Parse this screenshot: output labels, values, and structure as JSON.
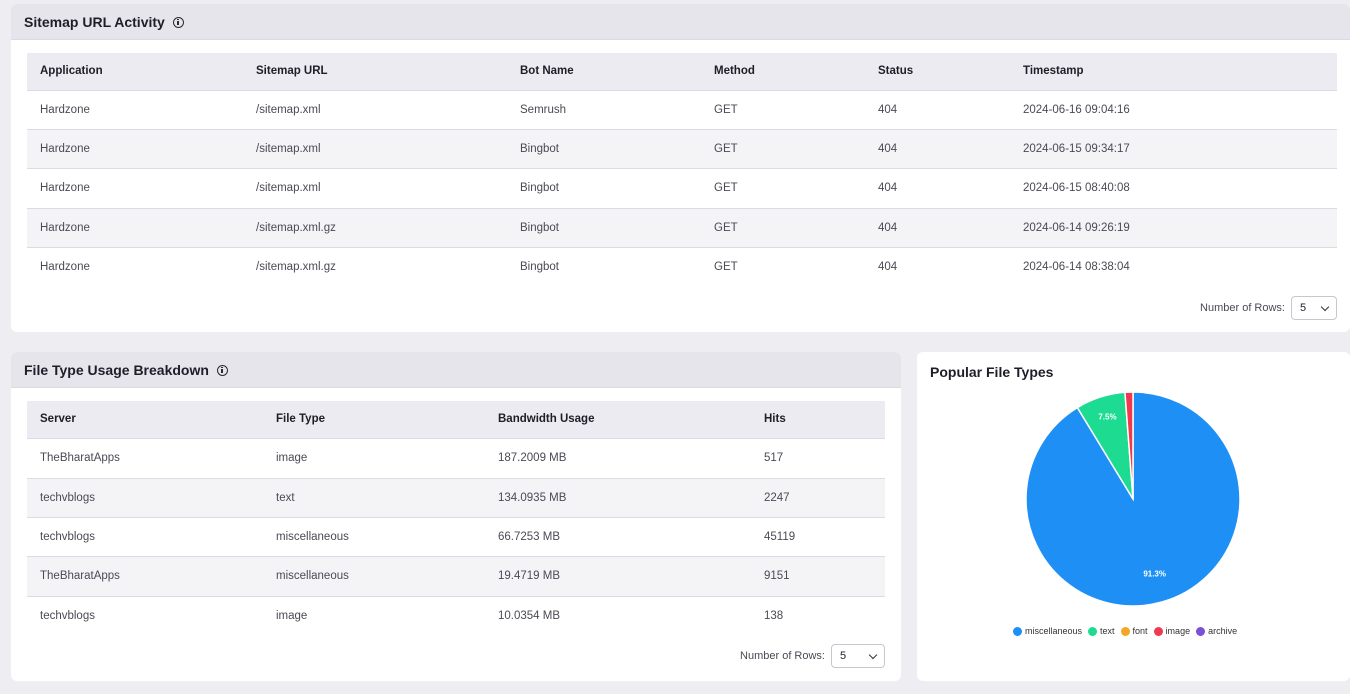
{
  "sitemap": {
    "title": "Sitemap URL Activity",
    "columns": [
      "Application",
      "Sitemap URL",
      "Bot Name",
      "Method",
      "Status",
      "Timestamp"
    ],
    "rows": [
      [
        "Hardzone",
        "/sitemap.xml",
        "Semrush",
        "GET",
        "404",
        "2024-06-16 09:04:16"
      ],
      [
        "Hardzone",
        "/sitemap.xml",
        "Bingbot",
        "GET",
        "404",
        "2024-06-15 09:34:17"
      ],
      [
        "Hardzone",
        "/sitemap.xml",
        "Bingbot",
        "GET",
        "404",
        "2024-06-15 08:40:08"
      ],
      [
        "Hardzone",
        "/sitemap.xml.gz",
        "Bingbot",
        "GET",
        "404",
        "2024-06-14 09:26:19"
      ],
      [
        "Hardzone",
        "/sitemap.xml.gz",
        "Bingbot",
        "GET",
        "404",
        "2024-06-14 08:38:04"
      ]
    ],
    "rows_label": "Number of Rows:",
    "rows_value": "5"
  },
  "filetype": {
    "title": "File Type Usage Breakdown",
    "columns": [
      "Server",
      "File Type",
      "Bandwidth Usage",
      "Hits"
    ],
    "rows": [
      [
        "TheBharatApps",
        "image",
        "187.2009 MB",
        "517"
      ],
      [
        "techvblogs",
        "text",
        "134.0935 MB",
        "2247"
      ],
      [
        "techvblogs",
        "miscellaneous",
        "66.7253 MB",
        "45119"
      ],
      [
        "TheBharatApps",
        "miscellaneous",
        "19.4719 MB",
        "9151"
      ],
      [
        "techvblogs",
        "image",
        "10.0354 MB",
        "138"
      ]
    ],
    "rows_label": "Number of Rows:",
    "rows_value": "5"
  },
  "popular": {
    "title": "Popular File Types"
  },
  "chart_data": {
    "type": "pie",
    "title": "Popular File Types",
    "slices": [
      {
        "name": "miscellaneous",
        "value": 91.3,
        "label": "91.3%",
        "color": "#1e90f5"
      },
      {
        "name": "text",
        "value": 7.5,
        "label": "7.5%",
        "color": "#1ddc91"
      },
      {
        "name": "font",
        "value": 0.0,
        "label": "",
        "color": "#f5a623"
      },
      {
        "name": "image",
        "value": 1.2,
        "label": "",
        "color": "#f0384f"
      },
      {
        "name": "archive",
        "value": 0.0,
        "label": "",
        "color": "#7b4fd6"
      }
    ],
    "legend_position": "bottom"
  }
}
